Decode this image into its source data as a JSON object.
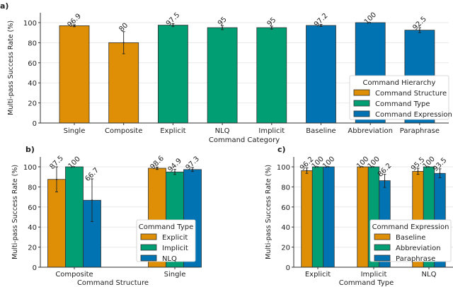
{
  "colors": {
    "orange": "#DE8F05",
    "green": "#029E73",
    "blue": "#0173B2"
  },
  "chart_data": [
    {
      "panel_label": "a)",
      "type": "bar",
      "xlabel": "Command Category",
      "ylabel": "Multi-pass Success Rate (%)",
      "ylim": [
        0,
        110
      ],
      "yticks": [
        0,
        20,
        40,
        60,
        80,
        100
      ],
      "grid": true,
      "categories": [
        "Single",
        "Composite",
        "Explicit",
        "NLQ",
        "Implicit",
        "Baseline",
        "Abbreviation",
        "Paraphrase"
      ],
      "values": [
        96.9,
        80,
        97.5,
        95,
        95,
        97.2,
        100,
        92.5
      ],
      "value_labels": [
        "96.9",
        "80",
        "97.5",
        "95",
        "95",
        "97.2",
        "100",
        "92.5"
      ],
      "error": [
        1,
        11,
        1.5,
        2,
        1.5,
        1,
        0,
        2.5
      ],
      "bar_groups": [
        "Command Structure",
        "Command Structure",
        "Command Type",
        "Command Type",
        "Command Type",
        "Command Expression",
        "Command Expression",
        "Command Expression"
      ],
      "legend": {
        "title": "Command Hierarchy",
        "placement": "lower-right",
        "entries": [
          "Command Structure",
          "Command Type",
          "Command Expression"
        ]
      }
    },
    {
      "panel_label": "b)",
      "type": "bar",
      "xlabel": "Command Structure",
      "ylabel": "Multi-pass Success Rate (%)",
      "ylim": [
        0,
        110
      ],
      "yticks": [
        0,
        20,
        40,
        60,
        80,
        100
      ],
      "grid": true,
      "categories": [
        "Composite",
        "Single"
      ],
      "series": [
        {
          "name": "Explicit",
          "values": [
            87.5,
            98.6
          ],
          "value_labels": [
            "87.5",
            "98.6"
          ],
          "error_low": [
            75,
            97.4
          ],
          "error_high": [
            100,
            99.8
          ]
        },
        {
          "name": "Implicit",
          "values": [
            100,
            94.9
          ],
          "value_labels": [
            "100",
            "94.9"
          ],
          "error_low": [
            100,
            92.4
          ],
          "error_high": [
            100,
            97.4
          ]
        },
        {
          "name": "NLQ",
          "values": [
            66.7,
            97.3
          ],
          "value_labels": [
            "66.7",
            "97.3"
          ],
          "error_low": [
            45.5,
            95.3
          ],
          "error_high": [
            88,
            99.3
          ]
        }
      ],
      "legend": {
        "title": "Command Type",
        "placement": "lower-right"
      }
    },
    {
      "panel_label": "c)",
      "type": "bar",
      "xlabel": "Command Type",
      "ylabel": "Multi-pass Success Rate (%)",
      "ylim": [
        0,
        110
      ],
      "yticks": [
        0,
        20,
        40,
        60,
        80,
        100
      ],
      "grid": true,
      "categories": [
        "Explicit",
        "Implicit",
        "NLQ"
      ],
      "series": [
        {
          "name": "Baseline",
          "values": [
            96.2,
            100,
            95.5
          ],
          "value_labels": [
            "96.2",
            "100",
            "95.5"
          ],
          "error_low": [
            93.5,
            100,
            92.5
          ],
          "error_high": [
            98.9,
            100,
            98.5
          ]
        },
        {
          "name": "Abbreviation",
          "values": [
            100,
            100,
            100
          ],
          "value_labels": [
            "100",
            "100",
            "100"
          ],
          "error_low": [
            100,
            100,
            100
          ],
          "error_high": [
            100,
            100,
            100
          ]
        },
        {
          "name": "Paraphrase",
          "values": [
            100,
            86.2,
            93.5
          ],
          "value_labels": [
            "100",
            "86.2",
            "93.5"
          ],
          "error_low": [
            100,
            79.5,
            89
          ],
          "error_high": [
            100,
            92.5,
            98
          ]
        }
      ],
      "legend": {
        "title": "Command Expression",
        "placement": "lower-right"
      }
    }
  ]
}
